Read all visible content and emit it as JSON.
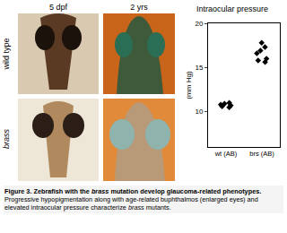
{
  "columns": [
    "5 dpf",
    "2 yrs"
  ],
  "rows": [
    "wild type",
    "brass"
  ],
  "caption": [
    {
      "text": "Figure 3. Zebrafish with the ",
      "bold": true,
      "italic": false
    },
    {
      "text": "brass",
      "bold": true,
      "italic": true
    },
    {
      "text": " mutation develop glaucoma-related phenotypes.",
      "bold": true,
      "italic": false
    },
    {
      "text": "  Progressive hypopigmentation along with age-related buphthalmos (enlarged eyes) and elevated intraocular pressure characterize ",
      "bold": false,
      "italic": false
    },
    {
      "text": "brass",
      "bold": false,
      "italic": true
    },
    {
      "text": " mutants.",
      "bold": false,
      "italic": false
    }
  ],
  "chart_data": {
    "type": "scatter",
    "title": "Intraocular pressure",
    "ylabel": "(mm Hg)",
    "categories": [
      "wt (AB)",
      "brs (AB)"
    ],
    "values": [
      [
        11.0,
        10.6,
        10.8,
        10.5,
        10.9,
        10.7
      ],
      [
        17.8,
        17.3,
        16.6,
        16.0,
        15.6,
        16.9,
        15.8
      ]
    ],
    "color": "#000000",
    "marker": "diamond",
    "ylim": [
      6,
      20
    ],
    "yticks": [
      10,
      15,
      20
    ],
    "grid": false
  }
}
